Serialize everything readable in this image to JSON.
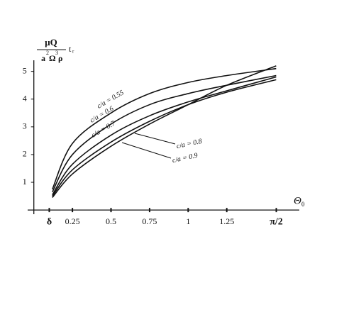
{
  "chart_data": {
    "type": "line",
    "y_label": {
      "numerator": "μQ",
      "denominator": [
        "a",
        "2",
        "Ω",
        "3",
        "ρ"
      ],
      "factor": "t",
      "factor_sub": "r"
    },
    "x_label": {
      "symbol": "Θ",
      "sub": "0"
    },
    "x": [
      0.12,
      0.25,
      0.5,
      0.75,
      1,
      1.25,
      1.57
    ],
    "series": [
      {
        "name": "c/a = 0.55",
        "color": "#111111",
        "values": [
          0.75,
          2.4,
          3.5,
          4.2,
          4.6,
          4.85,
          5.1
        ]
      },
      {
        "name": "c/a = 0.6",
        "color": "#111111",
        "values": [
          0.65,
          2.0,
          3.1,
          3.8,
          4.2,
          4.5,
          4.85
        ]
      },
      {
        "name": "c/a = 0.7",
        "color": "#111111",
        "values": [
          0.55,
          1.65,
          2.7,
          3.4,
          3.9,
          4.3,
          4.8
        ]
      },
      {
        "name": "c/a = 0.8",
        "color": "#111111",
        "values": [
          0.5,
          1.45,
          2.45,
          3.2,
          3.8,
          4.25,
          4.7
        ]
      },
      {
        "name": "c/a = 0.9",
        "color": "#111111",
        "values": [
          0.45,
          1.3,
          2.3,
          3.1,
          3.8,
          4.5,
          5.2
        ]
      }
    ],
    "xlim": [
      -0.04,
      1.72
    ],
    "ylim": [
      -0.15,
      5.4
    ],
    "xticks": [
      {
        "value": 0.1,
        "label": "δ"
      },
      0.25,
      0.5,
      0.75,
      1,
      1.25,
      {
        "value": 1.5708,
        "label": "π/2"
      }
    ],
    "yticks": [
      1,
      2,
      3,
      4,
      5
    ],
    "grid": false
  }
}
